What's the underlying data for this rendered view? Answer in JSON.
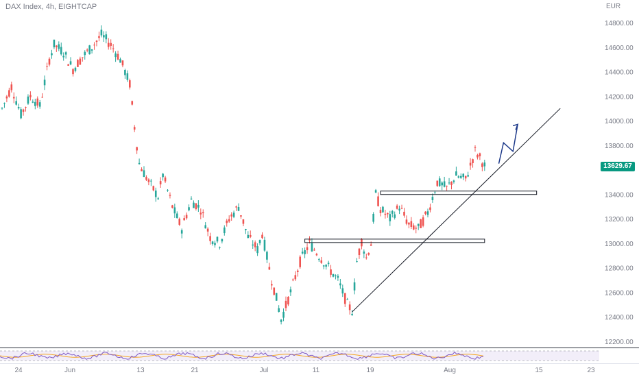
{
  "header": {
    "symbol": "DAX Index, 4h, EIGHTCAP",
    "currency": "EUR"
  },
  "last_price": "13629.67",
  "colors": {
    "up": "#26a69a",
    "down": "#ef5350",
    "price_label": "#089981",
    "trendline": "#131722",
    "arrow": "#1e3a8a",
    "rsi_line": "#7e57c2",
    "rsi_ma": "#f5a623"
  },
  "chart_data": {
    "type": "candlestick",
    "ylim": [
      12200,
      14900
    ],
    "yticks": [
      12200,
      12400,
      12600,
      12800,
      13000,
      13200,
      13400,
      13600,
      13800,
      14000,
      14200,
      14400,
      14600,
      14800
    ],
    "ytick_labels": [
      "12200.00",
      "12400.00",
      "12600.00",
      "12800.00",
      "13000.00",
      "13200.00",
      "13400.00",
      "13600.00",
      "13800.00",
      "14000.00",
      "14200.00",
      "14400.00",
      "14600.00",
      "14800.00"
    ],
    "xtick_labels": [
      "24",
      "Jun",
      "13",
      "21",
      "Jul",
      "11",
      "19",
      "Aug",
      "15",
      "23"
    ],
    "price_path": [
      [
        0,
        14100
      ],
      [
        2,
        14280
      ],
      [
        4,
        14050
      ],
      [
        6,
        14200
      ],
      [
        8,
        14120
      ],
      [
        10,
        14500
      ],
      [
        11,
        14620
      ],
      [
        13,
        14560
      ],
      [
        15,
        14420
      ],
      [
        17,
        14520
      ],
      [
        19,
        14600
      ],
      [
        21,
        14700
      ],
      [
        23,
        14620
      ],
      [
        25,
        14500
      ],
      [
        27,
        14300
      ],
      [
        28,
        13950
      ],
      [
        29,
        13650
      ],
      [
        31,
        13500
      ],
      [
        33,
        13380
      ],
      [
        34,
        13560
      ],
      [
        36,
        13300
      ],
      [
        38,
        13120
      ],
      [
        40,
        13350
      ],
      [
        42,
        13280
      ],
      [
        44,
        13050
      ],
      [
        46,
        13000
      ],
      [
        48,
        13200
      ],
      [
        50,
        13300
      ],
      [
        52,
        13050
      ],
      [
        54,
        12950
      ],
      [
        55,
        13080
      ],
      [
        57,
        12700
      ],
      [
        58,
        12550
      ],
      [
        59,
        12380
      ],
      [
        61,
        12600
      ],
      [
        63,
        12850
      ],
      [
        65,
        13000
      ],
      [
        67,
        12900
      ],
      [
        69,
        12800
      ],
      [
        71,
        12700
      ],
      [
        72,
        12600
      ],
      [
        73,
        12500
      ],
      [
        74,
        12450
      ],
      [
        75,
        12850
      ],
      [
        76,
        13020
      ],
      [
        77,
        12880
      ],
      [
        78,
        13000
      ],
      [
        79,
        13400
      ],
      [
        80,
        13280
      ],
      [
        82,
        13200
      ],
      [
        84,
        13300
      ],
      [
        86,
        13150
      ],
      [
        88,
        13120
      ],
      [
        90,
        13250
      ],
      [
        92,
        13500
      ],
      [
        94,
        13450
      ],
      [
        96,
        13550
      ],
      [
        98,
        13520
      ],
      [
        100,
        13750
      ],
      [
        101,
        13700
      ],
      [
        102,
        13630
      ]
    ],
    "n_bars": 105,
    "support_boxes": [
      {
        "price": 13020,
        "x_start": 64,
        "x_end": 102
      },
      {
        "price": 13412,
        "x_start": 80,
        "x_end": 113
      }
    ],
    "trendline": {
      "x1": 74,
      "y1": 12440,
      "x2": 118,
      "y2": 14100
    },
    "projection_arrow": [
      [
        105,
        13650
      ],
      [
        106,
        13820
      ],
      [
        108,
        13750
      ],
      [
        109,
        13970
      ]
    ],
    "rsi": {
      "series_name": "RSI",
      "upper": 70,
      "lower": 30
    }
  }
}
